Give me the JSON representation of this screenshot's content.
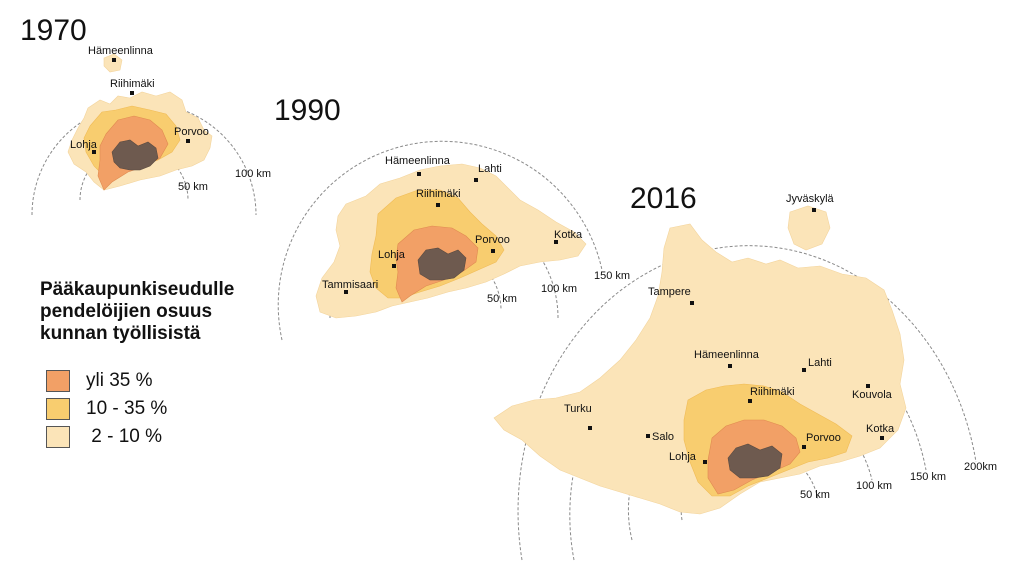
{
  "colors": {
    "high": "#f2a066",
    "mid": "#f8cd6f",
    "low": "#fbe4b8",
    "core": "#6e5a4f",
    "ring": "#8a8a8a"
  },
  "legend": {
    "title_lines": [
      "Pääkaupunkiseudulle",
      "pendelöijien osuus",
      "kunnan työllisistä"
    ],
    "items": [
      {
        "label": "yli 35 %",
        "color_key": "high"
      },
      {
        "label": "10 - 35 %",
        "color_key": "mid"
      },
      {
        "label": " 2 - 10 %",
        "color_key": "low"
      }
    ]
  },
  "maps": [
    {
      "year": "1970",
      "cities": [
        "Hämeenlinna",
        "Riihimäki",
        "Porvoo",
        "Lohja"
      ],
      "rings": [
        "50 km",
        "100 km"
      ]
    },
    {
      "year": "1990",
      "cities": [
        "Hämeenlinna",
        "Lahti",
        "Riihimäki",
        "Kotka",
        "Porvoo",
        "Lohja",
        "Tammisaari"
      ],
      "rings": [
        "50 km",
        "100 km",
        "150 km"
      ]
    },
    {
      "year": "2016",
      "cities": [
        "Jyväskylä",
        "Tampere",
        "Hämeenlinna",
        "Lahti",
        "Riihimäki",
        "Kouvola",
        "Turku",
        "Salo",
        "Kotka",
        "Porvoo",
        "Lohja"
      ],
      "rings": [
        "50 km",
        "100 km",
        "150 km",
        "200km"
      ]
    }
  ]
}
